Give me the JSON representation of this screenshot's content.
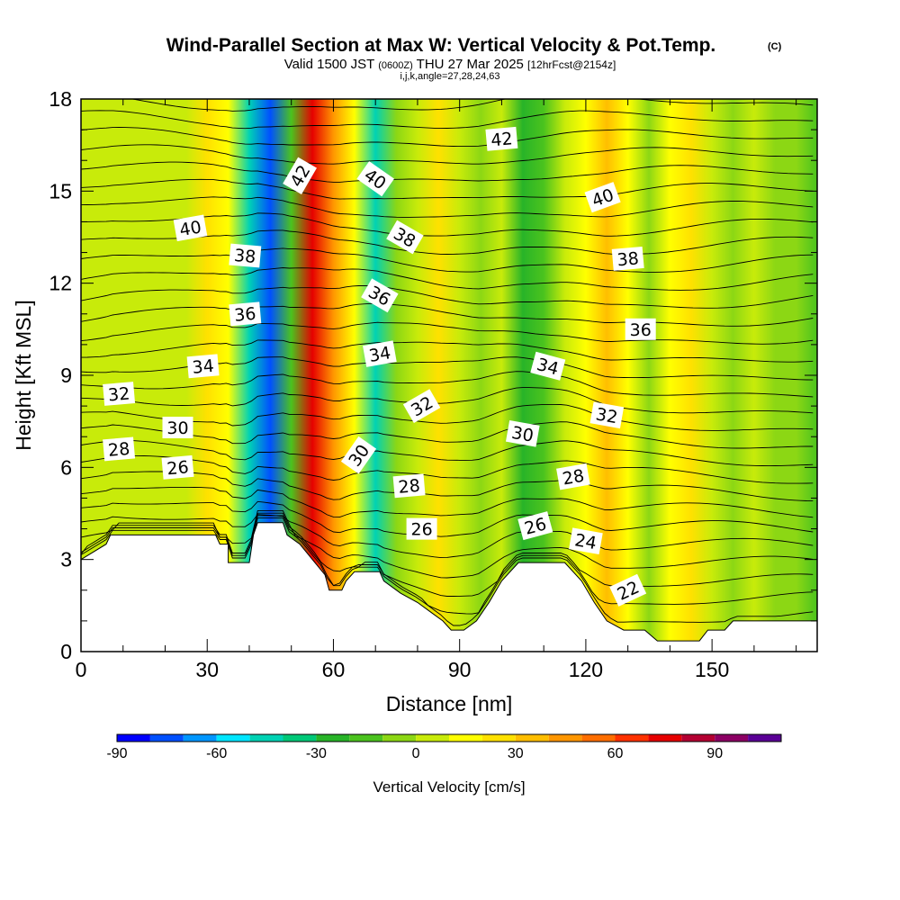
{
  "chart_data": {
    "type": "heatmap",
    "title": "Wind-Parallel Section at Max W: Vertical Velocity & Pot.Temp.",
    "copyright": "(C)",
    "subtitle_parts": [
      "Valid 1500 JST",
      "(0600Z)",
      "THU 27 Mar 2025",
      "[12hrFcst@2154z]"
    ],
    "subtitle2": "i,j,k,angle=27,28,24,63",
    "xlabel": "Distance [nm]",
    "ylabel": "Height [Kft MSL]",
    "xlim": [
      0,
      175
    ],
    "ylim": [
      0,
      18
    ],
    "x_ticks": [
      "0",
      "30",
      "60",
      "90",
      "120",
      "150"
    ],
    "x_tick_values": [
      0,
      30,
      60,
      90,
      120,
      150
    ],
    "y_ticks": [
      "0",
      "3",
      "6",
      "9",
      "12",
      "15",
      "18"
    ],
    "y_tick_values": [
      0,
      3,
      6,
      9,
      12,
      15,
      18
    ],
    "colorbar": {
      "label": "Vertical Velocity [cm/s]",
      "range": [
        -90,
        110
      ],
      "step": 10,
      "tick_labels": [
        "-90",
        "-60",
        "-30",
        "0",
        "30",
        "60",
        "90"
      ],
      "tick_values": [
        -90,
        -60,
        -30,
        0,
        30,
        60,
        90
      ],
      "colors": [
        "#0000ff",
        "#0050ff",
        "#0096ff",
        "#00e6ff",
        "#00d2b4",
        "#00c878",
        "#28b428",
        "#4bc31e",
        "#8cd714",
        "#c8eb0a",
        "#ffff00",
        "#ffe100",
        "#ffbe00",
        "#ff9600",
        "#ff6e00",
        "#ff3200",
        "#e60000",
        "#b40032",
        "#8c0064",
        "#5a0096"
      ]
    },
    "vertical_velocity_bands": [
      {
        "x": 0,
        "w": 0
      },
      {
        "x": 5,
        "w": 2
      },
      {
        "x": 10,
        "w": 3
      },
      {
        "x": 15,
        "w": 1
      },
      {
        "x": 20,
        "w": 2
      },
      {
        "x": 25,
        "w": 8
      },
      {
        "x": 30,
        "w": 22
      },
      {
        "x": 35,
        "w": 10
      },
      {
        "x": 40,
        "w": -45
      },
      {
        "x": 45,
        "w": -75
      },
      {
        "x": 50,
        "w": -20
      },
      {
        "x": 55,
        "w": 70
      },
      {
        "x": 60,
        "w": 45
      },
      {
        "x": 65,
        "w": 15
      },
      {
        "x": 70,
        "w": -45
      },
      {
        "x": 75,
        "w": -10
      },
      {
        "x": 80,
        "w": 8
      },
      {
        "x": 85,
        "w": 22
      },
      {
        "x": 90,
        "w": 6
      },
      {
        "x": 95,
        "w": -8
      },
      {
        "x": 100,
        "w": 4
      },
      {
        "x": 105,
        "w": -30
      },
      {
        "x": 110,
        "w": -12
      },
      {
        "x": 115,
        "w": 2
      },
      {
        "x": 120,
        "w": 12
      },
      {
        "x": 125,
        "w": 30
      },
      {
        "x": 130,
        "w": 15
      },
      {
        "x": 135,
        "w": -8
      },
      {
        "x": 140,
        "w": 12
      },
      {
        "x": 145,
        "w": 22
      },
      {
        "x": 150,
        "w": 6
      },
      {
        "x": 155,
        "w": -4
      },
      {
        "x": 160,
        "w": 1
      },
      {
        "x": 165,
        "w": -5
      },
      {
        "x": 170,
        "w": -10
      },
      {
        "x": 175,
        "w": -12
      }
    ],
    "terrain_kft": [
      {
        "x": 0,
        "z": 3.0
      },
      {
        "x": 6,
        "z": 3.5
      },
      {
        "x": 7,
        "z": 3.8
      },
      {
        "x": 32,
        "z": 3.8
      },
      {
        "x": 33,
        "z": 3.5
      },
      {
        "x": 35,
        "z": 3.5
      },
      {
        "x": 35,
        "z": 2.9
      },
      {
        "x": 40,
        "z": 2.9
      },
      {
        "x": 41,
        "z": 3.8
      },
      {
        "x": 42,
        "z": 4.2
      },
      {
        "x": 48,
        "z": 4.2
      },
      {
        "x": 49,
        "z": 3.8
      },
      {
        "x": 52,
        "z": 3.5
      },
      {
        "x": 55,
        "z": 3.0
      },
      {
        "x": 58,
        "z": 2.5
      },
      {
        "x": 59,
        "z": 2.0
      },
      {
        "x": 62,
        "z": 2.0
      },
      {
        "x": 63,
        "z": 2.3
      },
      {
        "x": 65,
        "z": 2.6
      },
      {
        "x": 71,
        "z": 2.6
      },
      {
        "x": 72,
        "z": 2.3
      },
      {
        "x": 76,
        "z": 1.9
      },
      {
        "x": 80,
        "z": 1.6
      },
      {
        "x": 83,
        "z": 1.3
      },
      {
        "x": 86,
        "z": 1.0
      },
      {
        "x": 88,
        "z": 0.7
      },
      {
        "x": 91,
        "z": 0.7
      },
      {
        "x": 94,
        "z": 1.0
      },
      {
        "x": 97,
        "z": 1.6
      },
      {
        "x": 100,
        "z": 2.3
      },
      {
        "x": 104,
        "z": 2.9
      },
      {
        "x": 115,
        "z": 2.9
      },
      {
        "x": 119,
        "z": 2.3
      },
      {
        "x": 122,
        "z": 1.6
      },
      {
        "x": 125,
        "z": 1.0
      },
      {
        "x": 129,
        "z": 0.7
      },
      {
        "x": 134,
        "z": 0.7
      },
      {
        "x": 137,
        "z": 0.35
      },
      {
        "x": 147,
        "z": 0.35
      },
      {
        "x": 149,
        "z": 0.7
      },
      {
        "x": 153,
        "z": 0.7
      },
      {
        "x": 155,
        "z": 1.0
      },
      {
        "x": 175,
        "z": 1.0
      }
    ],
    "theta_labels": [
      {
        "text": "42",
        "x": 52,
        "z": 15.5,
        "rot": -60
      },
      {
        "text": "40",
        "x": 70,
        "z": 15.4,
        "rot": 35
      },
      {
        "text": "42",
        "x": 100,
        "z": 16.7,
        "rot": -5
      },
      {
        "text": "40",
        "x": 124,
        "z": 14.8,
        "rot": -20
      },
      {
        "text": "40",
        "x": 26,
        "z": 13.8,
        "rot": -10
      },
      {
        "text": "38",
        "x": 77,
        "z": 13.5,
        "rot": 30
      },
      {
        "text": "38",
        "x": 39,
        "z": 12.9,
        "rot": 5
      },
      {
        "text": "38",
        "x": 130,
        "z": 12.8,
        "rot": -5
      },
      {
        "text": "36",
        "x": 71,
        "z": 11.6,
        "rot": 30
      },
      {
        "text": "36",
        "x": 39,
        "z": 11.0,
        "rot": -5
      },
      {
        "text": "36",
        "x": 133,
        "z": 10.5,
        "rot": 0
      },
      {
        "text": "34",
        "x": 29,
        "z": 9.3,
        "rot": -5
      },
      {
        "text": "34",
        "x": 71,
        "z": 9.7,
        "rot": -10
      },
      {
        "text": "34",
        "x": 111,
        "z": 9.3,
        "rot": 15
      },
      {
        "text": "32",
        "x": 9,
        "z": 8.4,
        "rot": -5
      },
      {
        "text": "32",
        "x": 81,
        "z": 8.0,
        "rot": -30
      },
      {
        "text": "32",
        "x": 125,
        "z": 7.7,
        "rot": 10
      },
      {
        "text": "30",
        "x": 23,
        "z": 7.3,
        "rot": 0
      },
      {
        "text": "30",
        "x": 66,
        "z": 6.4,
        "rot": -55
      },
      {
        "text": "30",
        "x": 105,
        "z": 7.1,
        "rot": 10
      },
      {
        "text": "28",
        "x": 9,
        "z": 6.6,
        "rot": -5
      },
      {
        "text": "28",
        "x": 78,
        "z": 5.4,
        "rot": -5
      },
      {
        "text": "28",
        "x": 117,
        "z": 5.7,
        "rot": -10
      },
      {
        "text": "26",
        "x": 23,
        "z": 6.0,
        "rot": -5
      },
      {
        "text": "26",
        "x": 81,
        "z": 4.0,
        "rot": 0
      },
      {
        "text": "26",
        "x": 108,
        "z": 4.1,
        "rot": -15
      },
      {
        "text": "24",
        "x": 120,
        "z": 3.6,
        "rot": 10
      },
      {
        "text": "22",
        "x": 130,
        "z": 2.0,
        "rot": -25
      }
    ]
  }
}
